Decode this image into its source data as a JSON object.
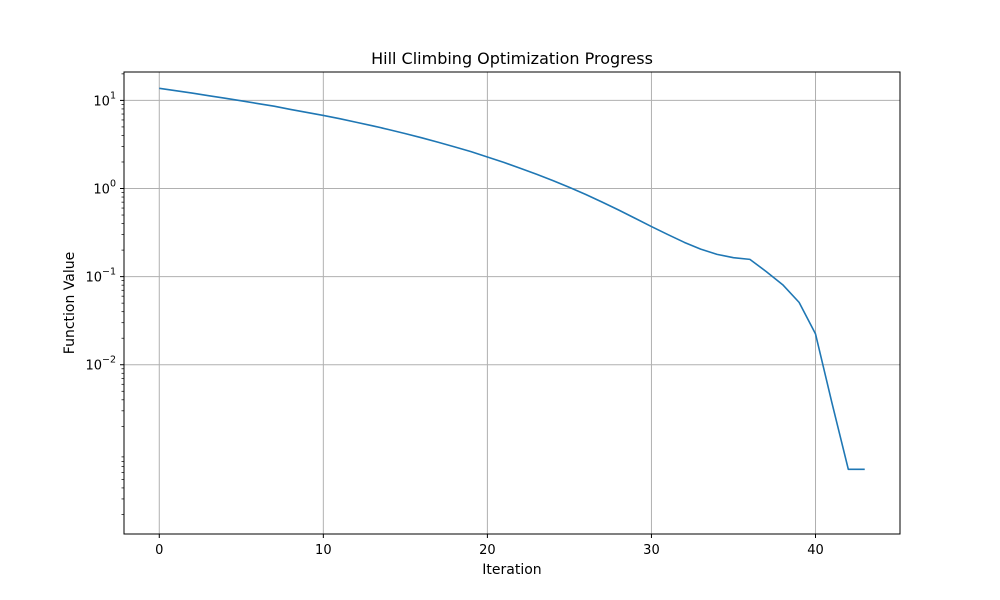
{
  "chart_data": {
    "type": "line",
    "title": "Hill Climbing Optimization Progress",
    "xlabel": "Iteration",
    "ylabel": "Function Value",
    "xlim": [
      -2.15,
      45.15
    ],
    "ylim": [
      0.00012,
      21
    ],
    "yscale": "log",
    "grid": true,
    "line_color": "#1f77b4",
    "x_ticks": [
      0,
      10,
      20,
      30,
      40
    ],
    "y_ticks": [
      {
        "value": 0.01,
        "base": "10",
        "exp": "−2"
      },
      {
        "value": 0.1,
        "base": "10",
        "exp": "−1"
      },
      {
        "value": 1,
        "base": "10",
        "exp": "0"
      },
      {
        "value": 10,
        "base": "10",
        "exp": "1"
      }
    ],
    "series": [
      {
        "x": [
          0,
          1,
          2,
          3,
          4,
          5,
          6,
          7,
          8,
          9,
          10,
          11,
          12,
          13,
          14,
          15,
          16,
          17,
          18,
          19,
          20,
          21,
          22,
          23,
          24,
          25,
          26,
          27,
          28,
          29,
          30,
          31,
          32,
          33,
          34,
          35,
          36,
          37,
          38,
          39,
          40,
          41,
          42,
          43
        ],
        "y": [
          13.7,
          12.9,
          12.1,
          11.3,
          10.6,
          9.9,
          9.2,
          8.6,
          7.9,
          7.3,
          6.75,
          6.2,
          5.65,
          5.15,
          4.66,
          4.2,
          3.76,
          3.35,
          2.97,
          2.62,
          2.28,
          1.98,
          1.7,
          1.45,
          1.23,
          1.03,
          0.855,
          0.7,
          0.57,
          0.46,
          0.37,
          0.3,
          0.245,
          0.205,
          0.179,
          0.164,
          0.157,
          0.114,
          0.081,
          0.051,
          0.0224,
          0.0037,
          0.00065,
          0.00065
        ]
      }
    ]
  }
}
